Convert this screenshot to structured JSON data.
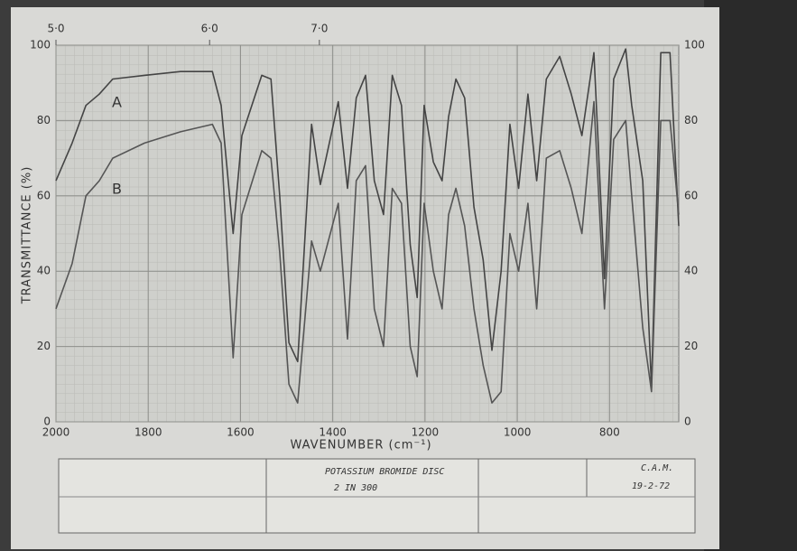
{
  "chart_data": {
    "type": "line",
    "xlabel": "WAVENUMBER (cm⁻¹)",
    "ylabel": "TRANSMITTANCE (%)",
    "xlim": [
      2000,
      650
    ],
    "ylim": [
      0,
      100
    ],
    "xticks": [
      2000,
      1800,
      1600,
      1400,
      1200,
      1000,
      800
    ],
    "yticks": [
      0,
      20,
      40,
      60,
      80,
      100
    ],
    "x2ticks": [
      {
        "value": 2000,
        "label": "5·0"
      },
      {
        "value": 1667,
        "label": "6·0"
      },
      {
        "value": 1429,
        "label": "7·0"
      }
    ],
    "grid": true,
    "x": [
      2000,
      1965,
      1935,
      1906,
      1877,
      1808,
      1730,
      1661,
      1642,
      1616,
      1597,
      1554,
      1534,
      1515,
      1495,
      1476,
      1446,
      1427,
      1388,
      1368,
      1349,
      1329,
      1310,
      1290,
      1271,
      1251,
      1232,
      1217,
      1202,
      1182,
      1163,
      1149,
      1133,
      1114,
      1094,
      1074,
      1055,
      1035,
      1016,
      997,
      977,
      958,
      937,
      908,
      883,
      860,
      834,
      811,
      791,
      765,
      752,
      728,
      709,
      689,
      669,
      650
    ],
    "series": [
      {
        "name": "A",
        "color": "#444",
        "values": [
          64,
          74,
          84,
          87,
          91,
          92,
          93,
          93,
          84,
          50,
          76,
          92,
          91,
          60,
          21,
          16,
          79,
          63,
          85,
          62,
          86,
          92,
          64,
          55,
          92,
          84,
          47,
          33,
          84,
          69,
          64,
          81,
          91,
          86,
          57,
          43,
          19,
          40,
          79,
          62,
          87,
          64,
          91,
          97,
          87,
          76,
          98,
          38,
          91,
          99,
          84,
          64,
          9,
          98,
          98,
          52
        ]
      },
      {
        "name": "B",
        "color": "#555",
        "values": [
          30,
          42,
          60,
          64,
          70,
          74,
          77,
          79,
          74,
          17,
          55,
          72,
          70,
          45,
          10,
          5,
          48,
          40,
          58,
          22,
          64,
          68,
          30,
          20,
          62,
          58,
          20,
          12,
          58,
          40,
          30,
          55,
          62,
          52,
          30,
          15,
          5,
          8,
          50,
          40,
          58,
          30,
          70,
          72,
          62,
          50,
          85,
          30,
          75,
          80,
          60,
          25,
          8,
          80,
          80,
          55
        ]
      }
    ],
    "annotations": [
      "POTASSIUM BROMIDE DISC",
      "2 IN 300",
      "C.A.M.",
      "19-2-72"
    ]
  }
}
